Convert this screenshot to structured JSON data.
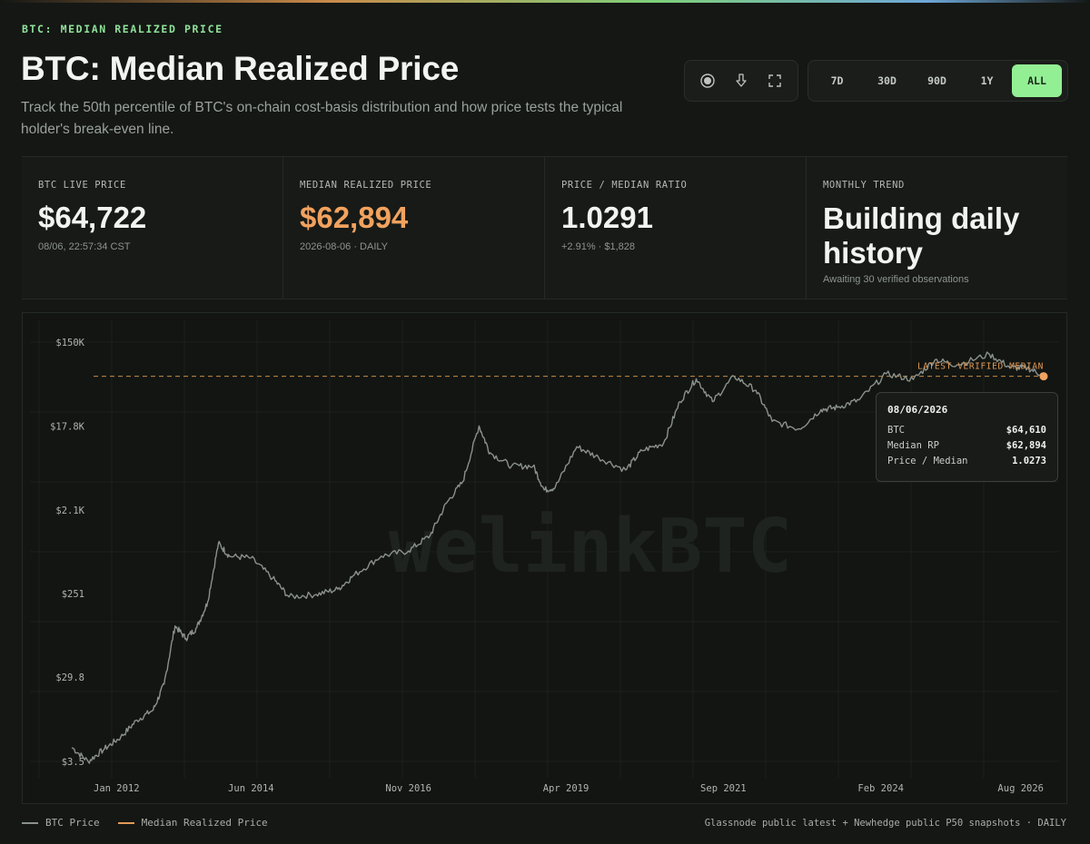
{
  "header": {
    "eyebrow": "BTC: MEDIAN REALIZED PRICE",
    "title": "BTC: Median Realized Price",
    "subtitle": "Track the 50th percentile of BTC's on-chain cost-basis distribution and how price tests the typical holder's break-even line."
  },
  "toolbar": {
    "icons": [
      "record-icon",
      "download-icon",
      "fullscreen-icon"
    ]
  },
  "ranges": {
    "options": [
      "7D",
      "30D",
      "90D",
      "1Y",
      "ALL"
    ],
    "selected": "ALL"
  },
  "stats": [
    {
      "label": "BTC LIVE PRICE",
      "value": "$64,722",
      "sub": "08/06, 22:57:34 CST"
    },
    {
      "label": "MEDIAN REALIZED PRICE",
      "value": "$62,894",
      "sub": "2026-08-06 · DAILY"
    },
    {
      "label": "PRICE / MEDIAN RATIO",
      "value": "1.0291",
      "sub": "+2.91% · $1,828"
    },
    {
      "label": "MONTHLY TREND",
      "value": "Building daily history",
      "sub": "Awaiting 30 verified observations"
    }
  ],
  "colors": {
    "accent_green": "#93ef94",
    "median_orange": "#f2a25e",
    "price_line": "#8b918b"
  },
  "chart_data": {
    "type": "line",
    "yscale": "log",
    "yticks": [
      "$150K",
      "$17.8K",
      "$2.1K",
      "$251",
      "$29.8",
      "$3.5"
    ],
    "ytick_values": [
      150000,
      17800,
      2100,
      251,
      29.8,
      3.5
    ],
    "xticks": [
      "Jan 2012",
      "Jun 2014",
      "Nov 2016",
      "Apr 2019",
      "Sep 2021",
      "Feb 2024",
      "Aug 2026"
    ],
    "xtick_dates": [
      "2012-01",
      "2014-06",
      "2016-11",
      "2019-04",
      "2021-09",
      "2024-02",
      "2026-08"
    ],
    "watermark": "welinkBTC",
    "median_label": "LATEST VERIFIED MEDIAN",
    "median_value": 62894,
    "series": [
      {
        "name": "BTC Price",
        "x": [
          "2011-09",
          "2011-12",
          "2012-03",
          "2012-06",
          "2012-09",
          "2012-12",
          "2013-02",
          "2013-04",
          "2013-06",
          "2013-08",
          "2013-10",
          "2013-12",
          "2014-02",
          "2014-06",
          "2014-10",
          "2015-01",
          "2015-06",
          "2015-10",
          "2016-01",
          "2016-06",
          "2016-11",
          "2017-03",
          "2017-06",
          "2017-09",
          "2017-12",
          "2018-02",
          "2018-06",
          "2018-10",
          "2018-12",
          "2019-02",
          "2019-06",
          "2019-10",
          "2020-03",
          "2020-06",
          "2020-10",
          "2021-01",
          "2021-04",
          "2021-07",
          "2021-11",
          "2022-03",
          "2022-06",
          "2022-11",
          "2023-03",
          "2023-06",
          "2023-10",
          "2024-03",
          "2024-08",
          "2024-12",
          "2025-04",
          "2025-10",
          "2026-02",
          "2026-05",
          "2026-08"
        ],
        "values": [
          5,
          3.5,
          4.8,
          6.5,
          10,
          13,
          25,
          110,
          80,
          105,
          200,
          900,
          650,
          620,
          370,
          230,
          245,
          280,
          400,
          650,
          740,
          1100,
          2500,
          4300,
          17800,
          9000,
          6400,
          6400,
          3500,
          3700,
          10500,
          8000,
          5800,
          9500,
          11500,
          33000,
          59000,
          33000,
          63000,
          44000,
          20000,
          16500,
          27000,
          28500,
          34500,
          67000,
          58000,
          96000,
          84000,
          110000,
          78000,
          78000,
          64610
        ]
      },
      {
        "name": "Median Realized Price",
        "value": 62894
      }
    ],
    "tooltip": {
      "date": "08/06/2026",
      "rows": [
        {
          "label": "BTC",
          "value": "$64,610"
        },
        {
          "label": "Median RP",
          "value": "$62,894"
        },
        {
          "label": "Price / Median",
          "value": "1.0273"
        }
      ]
    }
  },
  "footer": {
    "legend": [
      "BTC Price",
      "Median Realized Price"
    ],
    "source": "Glassnode public latest + Newhedge public P50 snapshots · DAILY"
  }
}
